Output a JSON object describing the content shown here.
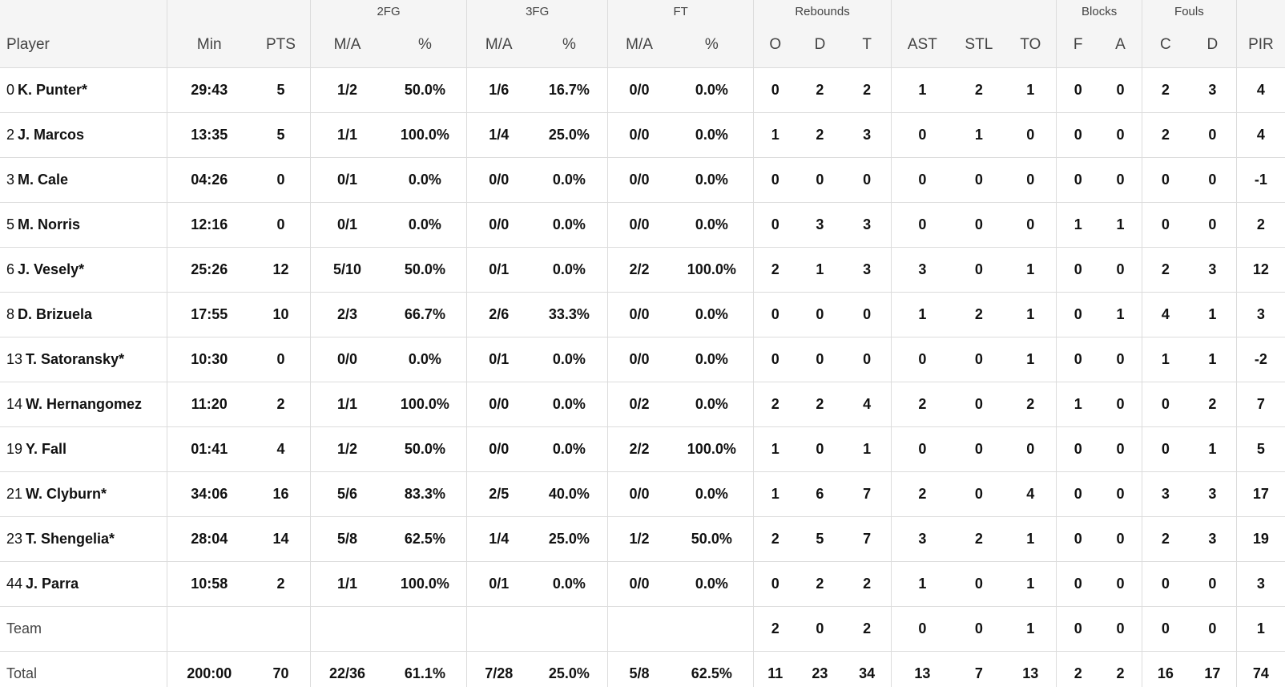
{
  "header": {
    "groups": [
      "2FG",
      "3FG",
      "FT",
      "Rebounds",
      "Blocks",
      "Fouls"
    ],
    "columns": [
      "Player",
      "Min",
      "PTS",
      "M/A",
      "%",
      "M/A",
      "%",
      "M/A",
      "%",
      "O",
      "D",
      "T",
      "AST",
      "STL",
      "TO",
      "F",
      "A",
      "C",
      "D",
      "PIR"
    ]
  },
  "players": [
    {
      "num": "0",
      "name": "K. Punter*",
      "stats": [
        "29:43",
        "5",
        "1/2",
        "50.0%",
        "1/6",
        "16.7%",
        "0/0",
        "0.0%",
        "0",
        "2",
        "2",
        "1",
        "2",
        "1",
        "0",
        "0",
        "2",
        "3",
        "4"
      ]
    },
    {
      "num": "2",
      "name": "J. Marcos",
      "stats": [
        "13:35",
        "5",
        "1/1",
        "100.0%",
        "1/4",
        "25.0%",
        "0/0",
        "0.0%",
        "1",
        "2",
        "3",
        "0",
        "1",
        "0",
        "0",
        "0",
        "2",
        "0",
        "4"
      ]
    },
    {
      "num": "3",
      "name": "M. Cale",
      "stats": [
        "04:26",
        "0",
        "0/1",
        "0.0%",
        "0/0",
        "0.0%",
        "0/0",
        "0.0%",
        "0",
        "0",
        "0",
        "0",
        "0",
        "0",
        "0",
        "0",
        "0",
        "0",
        "-1"
      ]
    },
    {
      "num": "5",
      "name": "M. Norris",
      "stats": [
        "12:16",
        "0",
        "0/1",
        "0.0%",
        "0/0",
        "0.0%",
        "0/0",
        "0.0%",
        "0",
        "3",
        "3",
        "0",
        "0",
        "0",
        "1",
        "1",
        "0",
        "0",
        "2"
      ]
    },
    {
      "num": "6",
      "name": "J. Vesely*",
      "stats": [
        "25:26",
        "12",
        "5/10",
        "50.0%",
        "0/1",
        "0.0%",
        "2/2",
        "100.0%",
        "2",
        "1",
        "3",
        "3",
        "0",
        "1",
        "0",
        "0",
        "2",
        "3",
        "12"
      ]
    },
    {
      "num": "8",
      "name": "D. Brizuela",
      "stats": [
        "17:55",
        "10",
        "2/3",
        "66.7%",
        "2/6",
        "33.3%",
        "0/0",
        "0.0%",
        "0",
        "0",
        "0",
        "1",
        "2",
        "1",
        "0",
        "1",
        "4",
        "1",
        "3"
      ]
    },
    {
      "num": "13",
      "name": "T. Satoransky*",
      "stats": [
        "10:30",
        "0",
        "0/0",
        "0.0%",
        "0/1",
        "0.0%",
        "0/0",
        "0.0%",
        "0",
        "0",
        "0",
        "0",
        "0",
        "1",
        "0",
        "0",
        "1",
        "1",
        "-2"
      ]
    },
    {
      "num": "14",
      "name": "W. Hernangomez",
      "stats": [
        "11:20",
        "2",
        "1/1",
        "100.0%",
        "0/0",
        "0.0%",
        "0/2",
        "0.0%",
        "2",
        "2",
        "4",
        "2",
        "0",
        "2",
        "1",
        "0",
        "0",
        "2",
        "7"
      ]
    },
    {
      "num": "19",
      "name": "Y. Fall",
      "stats": [
        "01:41",
        "4",
        "1/2",
        "50.0%",
        "0/0",
        "0.0%",
        "2/2",
        "100.0%",
        "1",
        "0",
        "1",
        "0",
        "0",
        "0",
        "0",
        "0",
        "0",
        "1",
        "5"
      ]
    },
    {
      "num": "21",
      "name": "W. Clyburn*",
      "stats": [
        "34:06",
        "16",
        "5/6",
        "83.3%",
        "2/5",
        "40.0%",
        "0/0",
        "0.0%",
        "1",
        "6",
        "7",
        "2",
        "0",
        "4",
        "0",
        "0",
        "3",
        "3",
        "17"
      ]
    },
    {
      "num": "23",
      "name": "T. Shengelia*",
      "stats": [
        "28:04",
        "14",
        "5/8",
        "62.5%",
        "1/4",
        "25.0%",
        "1/2",
        "50.0%",
        "2",
        "5",
        "7",
        "3",
        "2",
        "1",
        "0",
        "0",
        "2",
        "3",
        "19"
      ]
    },
    {
      "num": "44",
      "name": "J. Parra",
      "stats": [
        "10:58",
        "2",
        "1/1",
        "100.0%",
        "0/1",
        "0.0%",
        "0/0",
        "0.0%",
        "0",
        "2",
        "2",
        "1",
        "0",
        "1",
        "0",
        "0",
        "0",
        "0",
        "3"
      ]
    }
  ],
  "team": {
    "label": "Team",
    "stats": [
      "",
      "",
      "",
      "",
      "",
      "",
      "",
      "",
      "2",
      "0",
      "2",
      "0",
      "0",
      "1",
      "0",
      "0",
      "0",
      "0",
      "1"
    ]
  },
  "total": {
    "label": "Total",
    "stats": [
      "200:00",
      "70",
      "22/36",
      "61.1%",
      "7/28",
      "25.0%",
      "5/8",
      "62.5%",
      "11",
      "23",
      "34",
      "13",
      "7",
      "13",
      "2",
      "2",
      "16",
      "17",
      "74"
    ]
  }
}
